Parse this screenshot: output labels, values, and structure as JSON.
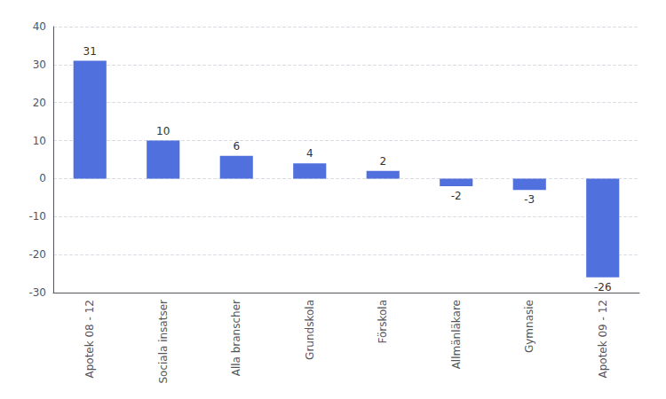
{
  "chart_data": {
    "type": "bar",
    "categories": [
      "Apotek 08 - 12",
      "Sociala insatser",
      "Alla branscher",
      "Grundskola",
      "Förskola",
      "Allmänläkare",
      "Gymnasie",
      "Apotek 09 - 12"
    ],
    "values": [
      31,
      10,
      6,
      4,
      2,
      -2,
      -3,
      -26
    ],
    "ylim": [
      -30,
      40
    ],
    "yticks": [
      -30,
      -20,
      -10,
      0,
      10,
      20,
      30,
      40
    ],
    "grid": true,
    "data_labels": true
  }
}
